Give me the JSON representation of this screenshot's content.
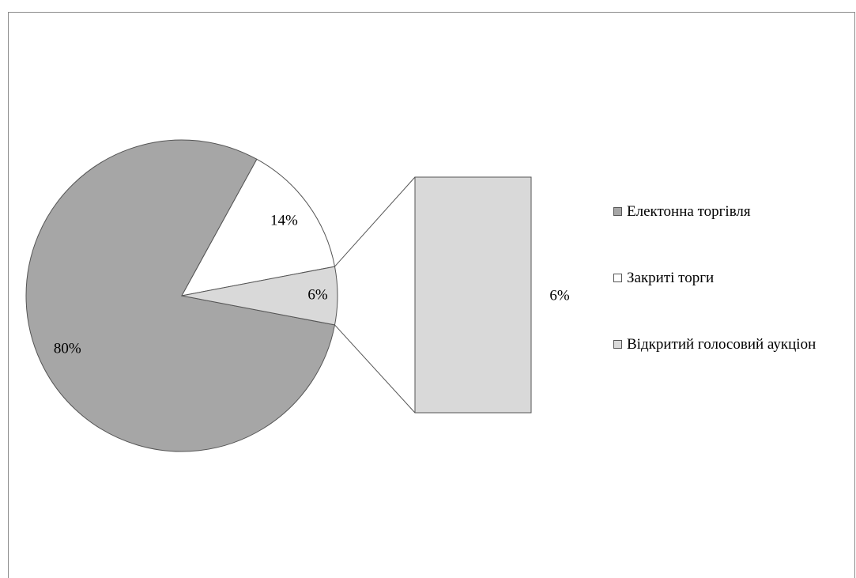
{
  "chart_data": {
    "type": "bar-of-pie",
    "categories": [
      "Електонна торгівля",
      "Закриті торги",
      "Відкритий голосовий аукціон"
    ],
    "values": [
      80,
      14,
      6
    ],
    "value_labels": [
      "80%",
      "14%",
      "6%"
    ],
    "colors": [
      "#a6a6a6",
      "#ffffff",
      "#d9d9d9"
    ],
    "legend": "right"
  }
}
